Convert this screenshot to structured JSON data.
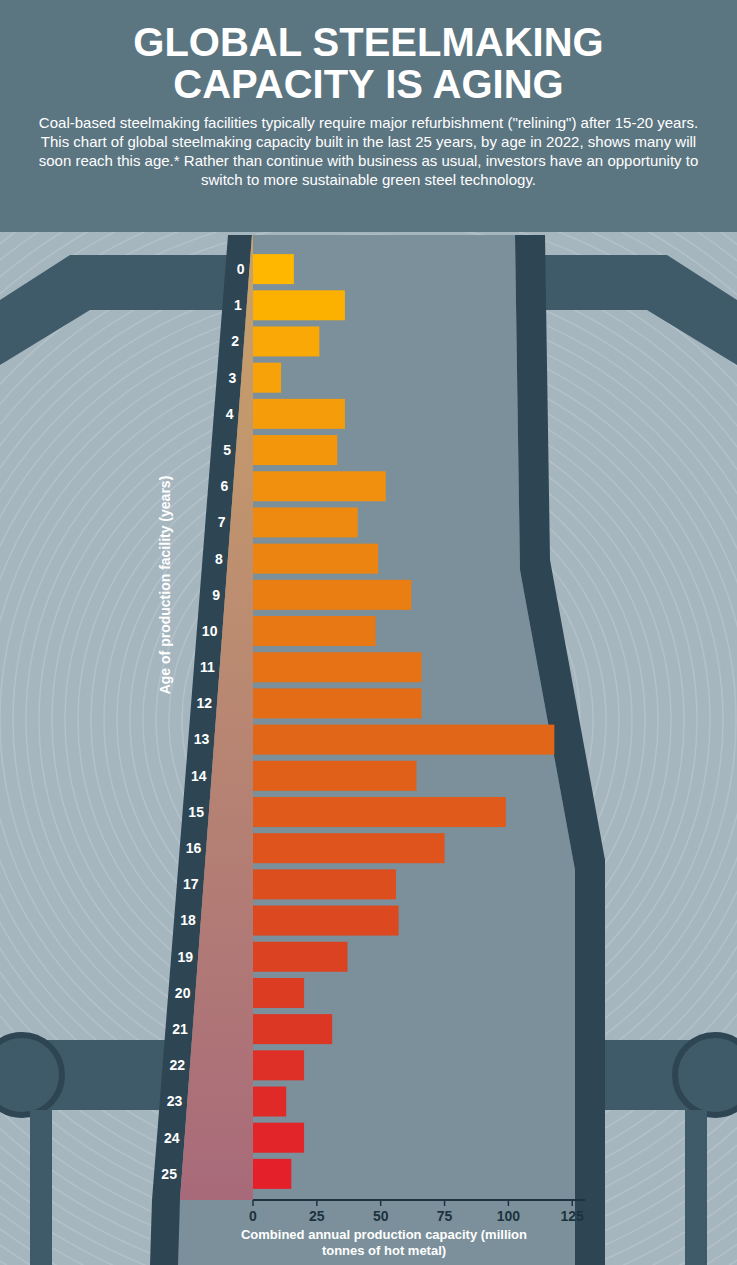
{
  "chart_data": {
    "type": "bar",
    "orientation": "horizontal",
    "title": "GLOBAL STEELMAKING CAPACITY IS AGING",
    "subtitle": "Coal-based steelmaking facilities typically require major refurbishment (\"relining\") after 15-20 years. This chart of global steelmaking capacity built in the last 25 years, by age in 2022, shows many will soon reach this age.* Rather than continue with business as usual, investors have an opportunity to switch to more sustainable green steel technology.",
    "ylabel": "Age of production facility (years)",
    "xlabel": "Combined annual production capacity (million tonnes of hot metal)",
    "categories": [
      "0",
      "1",
      "2",
      "3",
      "4",
      "5",
      "6",
      "7",
      "8",
      "9",
      "10",
      "11",
      "12",
      "13",
      "14",
      "15",
      "16",
      "17",
      "18",
      "19",
      "20",
      "21",
      "22",
      "23",
      "24",
      "25"
    ],
    "values": [
      16,
      36,
      26,
      11,
      36,
      33,
      52,
      41,
      49,
      62,
      48,
      66,
      66,
      118,
      64,
      99,
      75,
      56,
      57,
      37,
      20,
      31,
      20,
      13,
      20,
      15
    ],
    "colors": [
      "#ffb700",
      "#fcb000",
      "#f9a806",
      "#f7a208",
      "#f59c0a",
      "#f3960c",
      "#f1900e",
      "#ef8a10",
      "#ec8412",
      "#ea7e13",
      "#e87814",
      "#e67215",
      "#e46c17",
      "#e26618",
      "#e06019",
      "#df5a1b",
      "#de541c",
      "#dd4e1e",
      "#dc481f",
      "#db4221",
      "#db3c22",
      "#dc3624",
      "#de3026",
      "#e02a28",
      "#e22529",
      "#e4202b"
    ],
    "xlim": [
      0,
      130
    ],
    "xticks": [
      0,
      25,
      50,
      75,
      100,
      125
    ],
    "grid": false
  }
}
